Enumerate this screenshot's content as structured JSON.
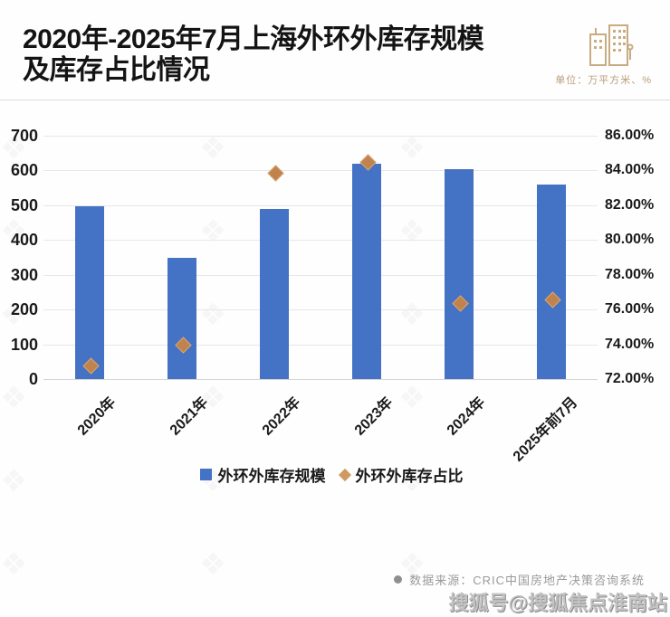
{
  "header": {
    "title_line1": "2020年-2025年7月上海外环外库存规模",
    "title_line2": "及库存占比情况",
    "unit_label": "单位：万平方米、%"
  },
  "colors": {
    "bar": "#4472C4",
    "marker": "#C0834E",
    "accent_tan": "#b99d78",
    "gridline": "#e7e7e7"
  },
  "chart_data": {
    "type": "bar",
    "subtype": "combo-bar-scatter",
    "title": "2020年-2025年7月上海外环外库存规模及库存占比情况",
    "categories": [
      "2020年",
      "2021年",
      "2022年",
      "2023年",
      "2024年",
      "2025年前7月"
    ],
    "series": [
      {
        "name": "外环外库存规模",
        "type": "bar",
        "axis": "left",
        "marker": "square",
        "color": "#4472C4",
        "values": [
          497,
          350,
          489,
          620,
          604,
          560
        ]
      },
      {
        "name": "外环外库存占比",
        "type": "scatter",
        "axis": "right",
        "marker": "diamond",
        "color": "#C0834E",
        "values": [
          72.8,
          74.0,
          83.9,
          84.5,
          76.4,
          76.6
        ]
      }
    ],
    "left_axis": {
      "min": 0,
      "max": 700,
      "step": 100,
      "ticks": [
        "700",
        "600",
        "500",
        "400",
        "300",
        "200",
        "100",
        "0"
      ]
    },
    "right_axis": {
      "min": 72,
      "max": 86,
      "step": 2,
      "ticks": [
        "86.00%",
        "84.00%",
        "82.00%",
        "80.00%",
        "78.00%",
        "76.00%",
        "74.00%",
        "72.00%"
      ]
    },
    "grid": true,
    "legend_position": "bottom"
  },
  "footer": {
    "source": "数据来源：CRIC中国房地产决策咨询系统",
    "watermark": "搜狐号@搜狐焦点淮南站"
  }
}
